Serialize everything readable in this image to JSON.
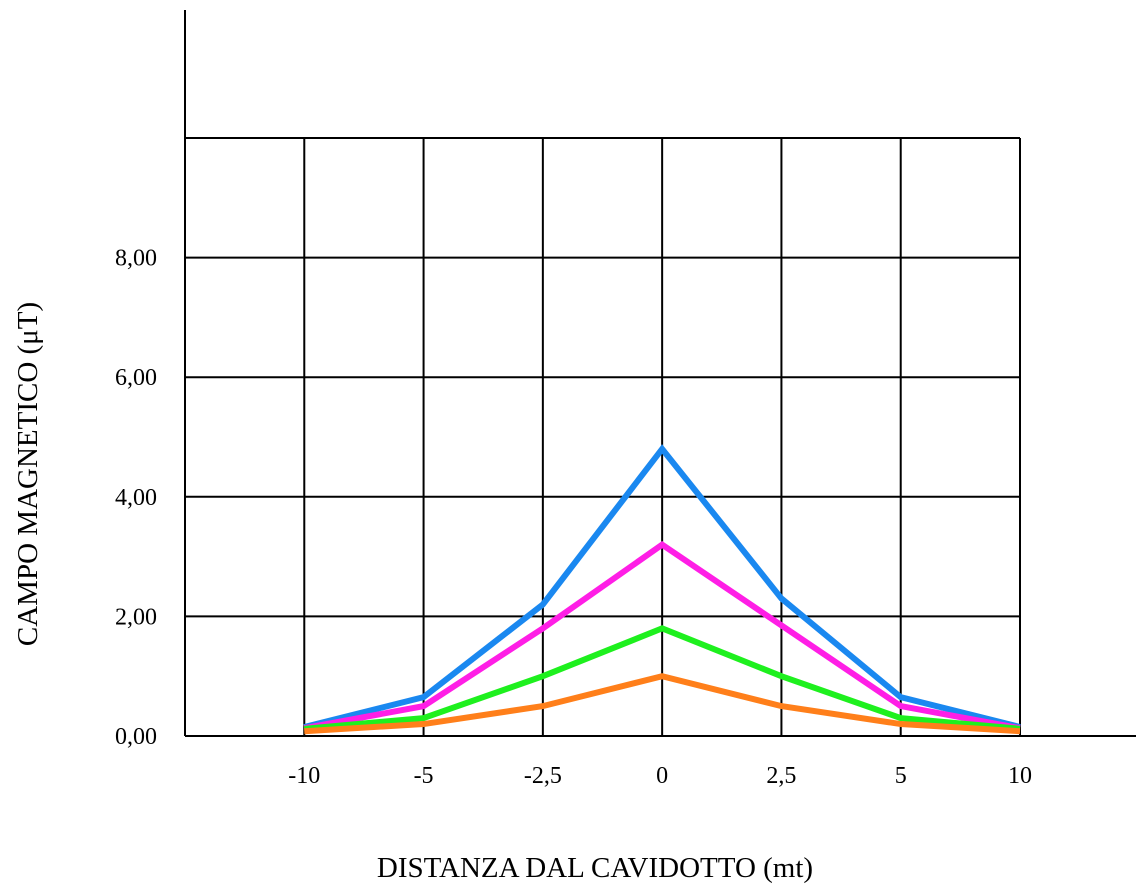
{
  "chart_data": {
    "type": "line",
    "categories": [
      "-10",
      "-5",
      "-2,5",
      "0",
      "2,5",
      "5",
      "10"
    ],
    "series": [
      {
        "color": "#1a88f0",
        "values": [
          0.15,
          0.65,
          2.2,
          4.8,
          2.3,
          0.65,
          0.15
        ]
      },
      {
        "color": "#ff1ee6",
        "values": [
          0.13,
          0.5,
          1.8,
          3.2,
          1.85,
          0.5,
          0.13
        ]
      },
      {
        "color": "#1ef01e",
        "values": [
          0.12,
          0.3,
          1.0,
          1.8,
          1.0,
          0.3,
          0.12
        ]
      },
      {
        "color": "#ff7f1a",
        "values": [
          0.08,
          0.2,
          0.5,
          1.0,
          0.5,
          0.2,
          0.08
        ]
      }
    ],
    "yticks": [
      0,
      2,
      4,
      6,
      8
    ],
    "ytick_labels": [
      "0,00",
      "2,00",
      "4,00",
      "6,00",
      "8,00"
    ],
    "ylim": [
      0,
      10
    ],
    "xlabel": "DISTANZA DAL CAVIDOTTO (mt)",
    "ylabel": "CAMPO MAGNETICO (μT)",
    "grid": true
  }
}
